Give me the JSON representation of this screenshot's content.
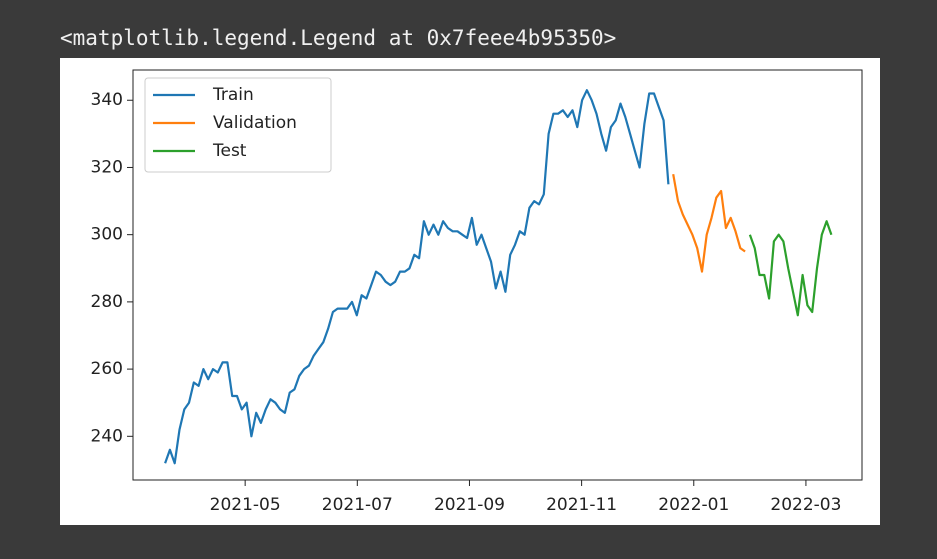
{
  "output_text": "<matplotlib.legend.Legend at 0x7feee4b95350>",
  "chart_data": {
    "type": "line",
    "xlim": [
      "2021-03",
      "2022-04"
    ],
    "xticks": [
      "2021-05",
      "2021-07",
      "2021-09",
      "2021-11",
      "2022-01",
      "2022-03"
    ],
    "ylim": [
      227,
      349
    ],
    "yticks": [
      240,
      260,
      280,
      300,
      320,
      340
    ],
    "legend": "upper left",
    "series": [
      {
        "name": "Train",
        "color": "#1f77b4",
        "values": [
          232,
          236,
          232,
          242,
          248,
          250,
          256,
          255,
          260,
          257,
          260,
          259,
          262,
          262,
          252,
          252,
          248,
          250,
          240,
          247,
          244,
          248,
          251,
          250,
          248,
          247,
          253,
          254,
          258,
          260,
          261,
          264,
          266,
          268,
          272,
          277,
          278,
          278,
          278,
          280,
          276,
          282,
          281,
          285,
          289,
          288,
          286,
          285,
          286,
          289,
          289,
          290,
          294,
          293,
          304,
          300,
          303,
          300,
          304,
          302,
          301,
          301,
          300,
          299,
          305,
          297,
          300,
          296,
          292,
          284,
          289,
          283,
          294,
          297,
          301,
          300,
          308,
          310,
          309,
          312,
          330,
          336,
          336,
          337,
          335,
          337,
          332,
          340,
          343,
          340,
          336,
          330,
          325,
          332,
          334,
          339,
          335,
          330,
          325,
          320,
          333,
          342,
          342,
          338,
          334,
          315
        ]
      },
      {
        "name": "Validation",
        "color": "#ff7f0e",
        "values": [
          318,
          310,
          306,
          303,
          300,
          296,
          289,
          300,
          305,
          311,
          313,
          302,
          305,
          301,
          296,
          295
        ]
      },
      {
        "name": "Test",
        "color": "#2ca02c",
        "values": [
          300,
          296,
          288,
          288,
          281,
          298,
          300,
          298,
          290,
          283,
          276,
          288,
          279,
          277,
          290,
          300,
          304,
          300
        ]
      }
    ]
  }
}
